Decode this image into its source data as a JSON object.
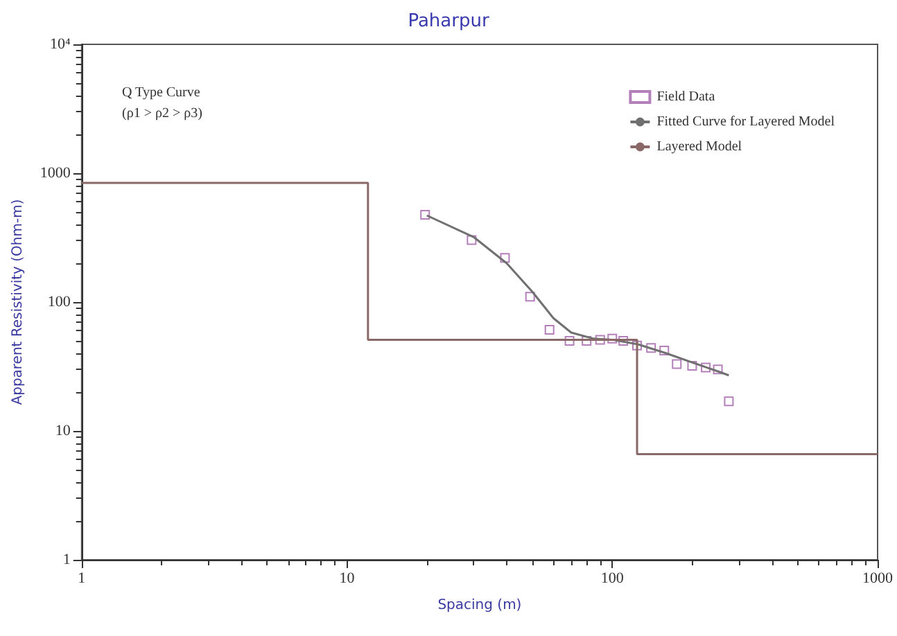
{
  "chart_data": {
    "type": "scatter",
    "title": "Paharpur",
    "xlabel": "Spacing (m)",
    "ylabel": "Apparent Resistivity (Ohm-m)",
    "annotations": [
      "Q Type Curve",
      "(ρ1 > ρ2 > ρ3)"
    ],
    "log": "xy",
    "grid": false,
    "legend": "top right",
    "xlim": [
      1,
      1000
    ],
    "xticks": [
      1,
      10,
      100,
      1000
    ],
    "ylim": [
      1,
      10000
    ],
    "yticks": [
      1,
      10,
      100,
      1000,
      {
        "value": 10000,
        "label": "10⁴"
      }
    ],
    "series": [
      {
        "name": "Field Data",
        "marker": "square",
        "color": "#a060a8",
        "x": [
          19.7,
          29.5,
          39.4,
          49,
          58,
          69,
          80,
          90,
          100,
          110,
          124,
          140,
          157,
          175,
          200,
          225,
          250,
          275
        ],
        "values": [
          476,
          303,
          220,
          110,
          61,
          50,
          50,
          51,
          52,
          50,
          46,
          44,
          42,
          33,
          32,
          31,
          30,
          17
        ]
      },
      {
        "name": "Fitted Curve for Layered Model",
        "type": "line",
        "color": "#707070",
        "x": [
          20,
          30,
          40,
          50,
          60,
          70,
          85,
          100,
          125,
          160,
          200,
          250,
          275
        ],
        "values": [
          470,
          320,
          200,
          120,
          75,
          58,
          52,
          51,
          47,
          40,
          34,
          29,
          27
        ]
      },
      {
        "name": "Layered Model",
        "type": "step",
        "color": "#8a6868",
        "x": [
          1,
          12,
          124,
          1000
        ],
        "values": [
          840,
          51,
          6.6,
          6.6
        ]
      }
    ]
  }
}
